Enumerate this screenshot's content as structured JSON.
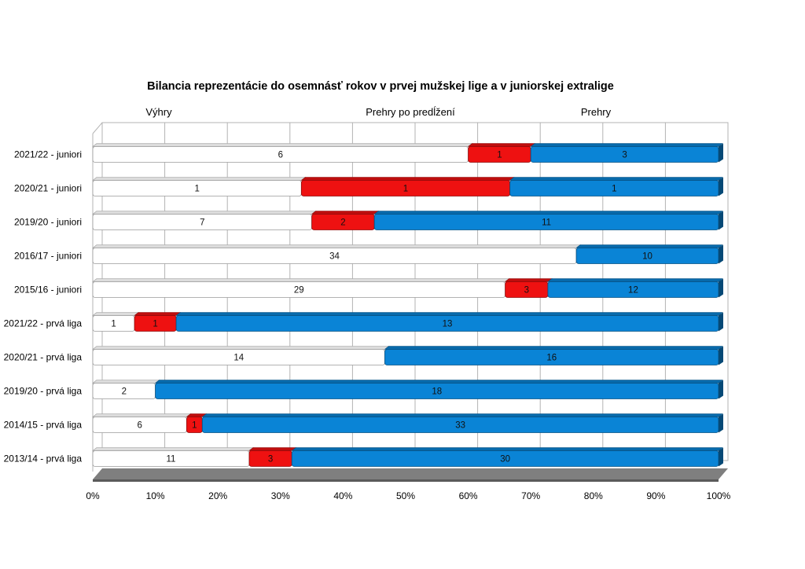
{
  "chart_data": {
    "type": "bar",
    "orientation": "horizontal",
    "stacked": "percent",
    "title": "Bilancia reprezentácie do osemnásť rokov v prvej mužskej lige a v juniorskej extralige",
    "categories": [
      "2021/22 - juniori",
      "2020/21 - juniori",
      "2019/20 - juniori",
      "2016/17 - juniori",
      "2015/16 - juniori",
      "2021/22 - prvá liga",
      "2020/21 - prvá liga",
      "2019/20 - prvá liga",
      "2014/15 - prvá liga",
      "2013/14 - prvá liga"
    ],
    "series": [
      {
        "name": "Výhry",
        "color": "#ffffff",
        "values": [
          6,
          1,
          7,
          34,
          29,
          1,
          14,
          2,
          6,
          11
        ]
      },
      {
        "name": "Prehry po predĺžení",
        "color": "#ee1111",
        "values": [
          1,
          1,
          2,
          0,
          3,
          1,
          0,
          0,
          1,
          3
        ]
      },
      {
        "name": "Prehry",
        "color": "#0a84d6",
        "values": [
          3,
          1,
          11,
          10,
          12,
          13,
          16,
          18,
          33,
          30
        ]
      }
    ],
    "xticks": [
      "0%",
      "10%",
      "20%",
      "30%",
      "40%",
      "50%",
      "60%",
      "70%",
      "80%",
      "90%",
      "100%"
    ],
    "xlim": [
      0,
      100
    ],
    "grid": true,
    "legend": "top"
  }
}
